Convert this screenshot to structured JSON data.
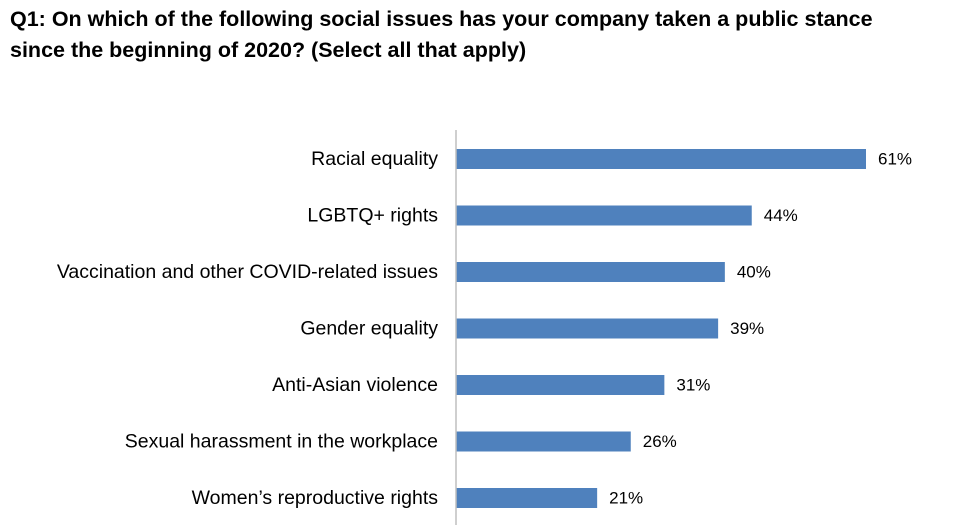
{
  "chart_data": {
    "type": "bar",
    "orientation": "horizontal",
    "title_lines": [
      "Q1: On which of the following social issues has your company taken a public stance",
      "since the beginning of 2020? (Select all that apply)"
    ],
    "categories": [
      "Racial equality",
      "LGBTQ+ rights",
      "Vaccination and other COVID-related issues",
      "Gender equality",
      "Anti-Asian violence",
      "Sexual harassment in the workplace",
      "Women’s reproductive rights"
    ],
    "values": [
      61,
      44,
      40,
      39,
      31,
      26,
      21
    ],
    "value_labels": [
      "61%",
      "44%",
      "40%",
      "39%",
      "31%",
      "26%",
      "21%"
    ],
    "value_unit": "%",
    "xlim": [
      0,
      70
    ],
    "grid": false,
    "legend": "none",
    "bar_color": "#4f81bd",
    "axis_color": "#bfbfbf"
  }
}
